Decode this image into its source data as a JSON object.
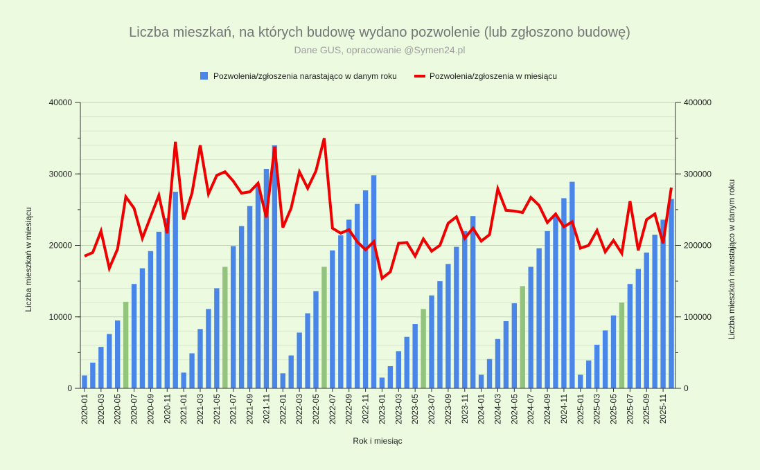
{
  "chart_data": {
    "type": "bar",
    "title": "Liczba mieszkań, na których budowę wydano pozwolenie (lub zgłoszono budowę)",
    "subtitle": "Dane GUS, opracowanie @Symen24.pl",
    "xlabel": "Rok i miesiąc",
    "ylabel_left": "Liczba mieszkań w miesiącu",
    "ylabel_right": "Liczba mieszkań narastająco w danym roku",
    "ylim_left": [
      0,
      40000
    ],
    "ylim_right": [
      0,
      400000
    ],
    "yticks_left": [
      "0",
      "10000",
      "20000",
      "30000",
      "40000"
    ],
    "yticks_right": [
      "0",
      "100000",
      "200000",
      "300000",
      "400000"
    ],
    "legend_position": "top-center",
    "grid": true,
    "colors": {
      "bar": "#4a86e8",
      "bar_highlight": "#93c47d",
      "line": "#ee0000",
      "background": "#ecfae0",
      "grid": "#c9d9bd"
    },
    "categories": [
      "2020-01",
      "2020-02",
      "2020-03",
      "2020-04",
      "2020-05",
      "2020-06",
      "2020-07",
      "2020-08",
      "2020-09",
      "2020-10",
      "2020-11",
      "2020-12",
      "2021-01",
      "2021-02",
      "2021-03",
      "2021-04",
      "2021-05",
      "2021-06",
      "2021-07",
      "2021-08",
      "2021-09",
      "2021-10",
      "2021-11",
      "2021-12",
      "2022-01",
      "2022-02",
      "2022-03",
      "2022-04",
      "2022-05",
      "2022-06",
      "2022-07",
      "2022-08",
      "2022-09",
      "2022-10",
      "2022-11",
      "2022-12",
      "2023-01",
      "2023-02",
      "2023-03",
      "2023-04",
      "2023-05",
      "2023-06",
      "2023-07",
      "2023-08",
      "2023-09",
      "2023-10",
      "2023-11",
      "2023-12",
      "2024-01",
      "2024-02",
      "2024-03",
      "2024-04",
      "2024-05",
      "2024-06",
      "2024-07",
      "2024-08",
      "2024-09",
      "2024-10",
      "2024-11",
      "2024-12",
      "2025-01",
      "2025-02",
      "2025-03",
      "2025-04",
      "2025-05",
      "2025-06",
      "2025-07",
      "2025-08",
      "2025-09",
      "2025-10",
      "2025-11",
      "2025-12"
    ],
    "x_tick_labels": [
      "2020-01",
      "2020-03",
      "2020-05",
      "2020-07",
      "2020-09",
      "2020-11",
      "2021-01",
      "2021-03",
      "2021-05",
      "2021-07",
      "2021-09",
      "2021-11",
      "2022-01",
      "2022-03",
      "2022-05",
      "2022-07",
      "2022-09",
      "2022-11",
      "2023-01",
      "2023-03",
      "2023-05",
      "2023-07",
      "2023-09",
      "2023-11",
      "2024-01",
      "2024-03",
      "2024-05",
      "2024-07",
      "2024-09",
      "2024-11",
      "2025-01",
      "2025-03",
      "2025-05",
      "2025-07",
      "2025-09",
      "2025-11"
    ],
    "highlight_categories": [
      "2020-06",
      "2021-06",
      "2022-06",
      "2023-06",
      "2024-06",
      "2025-06"
    ],
    "series": [
      {
        "name": "Pozwolenia/zgłoszenia  narastająco w danym roku",
        "type": "bar",
        "axis": "right",
        "values": [
          18000,
          36000,
          58000,
          76000,
          95000,
          121000,
          146000,
          168000,
          192000,
          219000,
          238000,
          275000,
          22000,
          49000,
          83000,
          111000,
          140000,
          170000,
          199000,
          227000,
          255000,
          283000,
          307000,
          340000,
          21000,
          46000,
          78000,
          105000,
          136000,
          170000,
          193000,
          214000,
          236000,
          258000,
          277000,
          298000,
          15000,
          31000,
          52000,
          72000,
          90000,
          111000,
          130000,
          150000,
          174000,
          198000,
          220000,
          241000,
          19000,
          41000,
          69000,
          94000,
          119000,
          143000,
          170000,
          196000,
          220000,
          242000,
          266000,
          289000,
          19000,
          39000,
          61000,
          81000,
          102000,
          120000,
          146000,
          167000,
          190000,
          215000,
          236000,
          265000
        ]
      },
      {
        "name": "Pozwolenia/zgłoszenia w miesiącu",
        "type": "line",
        "axis": "left",
        "values": [
          18500,
          19000,
          22000,
          16800,
          19500,
          26800,
          25200,
          21000,
          24000,
          27000,
          21700,
          34500,
          23600,
          27300,
          34000,
          27200,
          29800,
          30300,
          29000,
          27300,
          27500,
          28700,
          23900,
          33800,
          22500,
          25200,
          30300,
          28000,
          30400,
          35000,
          22400,
          21700,
          22200,
          20500,
          19400,
          20500,
          15400,
          16300,
          20300,
          20400,
          18500,
          20900,
          19200,
          20000,
          23100,
          24000,
          21000,
          22400,
          20600,
          21500,
          27900,
          24900,
          24800,
          24600,
          26700,
          25600,
          23200,
          24400,
          22600,
          23300,
          19600,
          20000,
          22100,
          19100,
          20700,
          18900,
          26200,
          19300,
          23600,
          24400,
          20300,
          28100
        ]
      }
    ]
  }
}
